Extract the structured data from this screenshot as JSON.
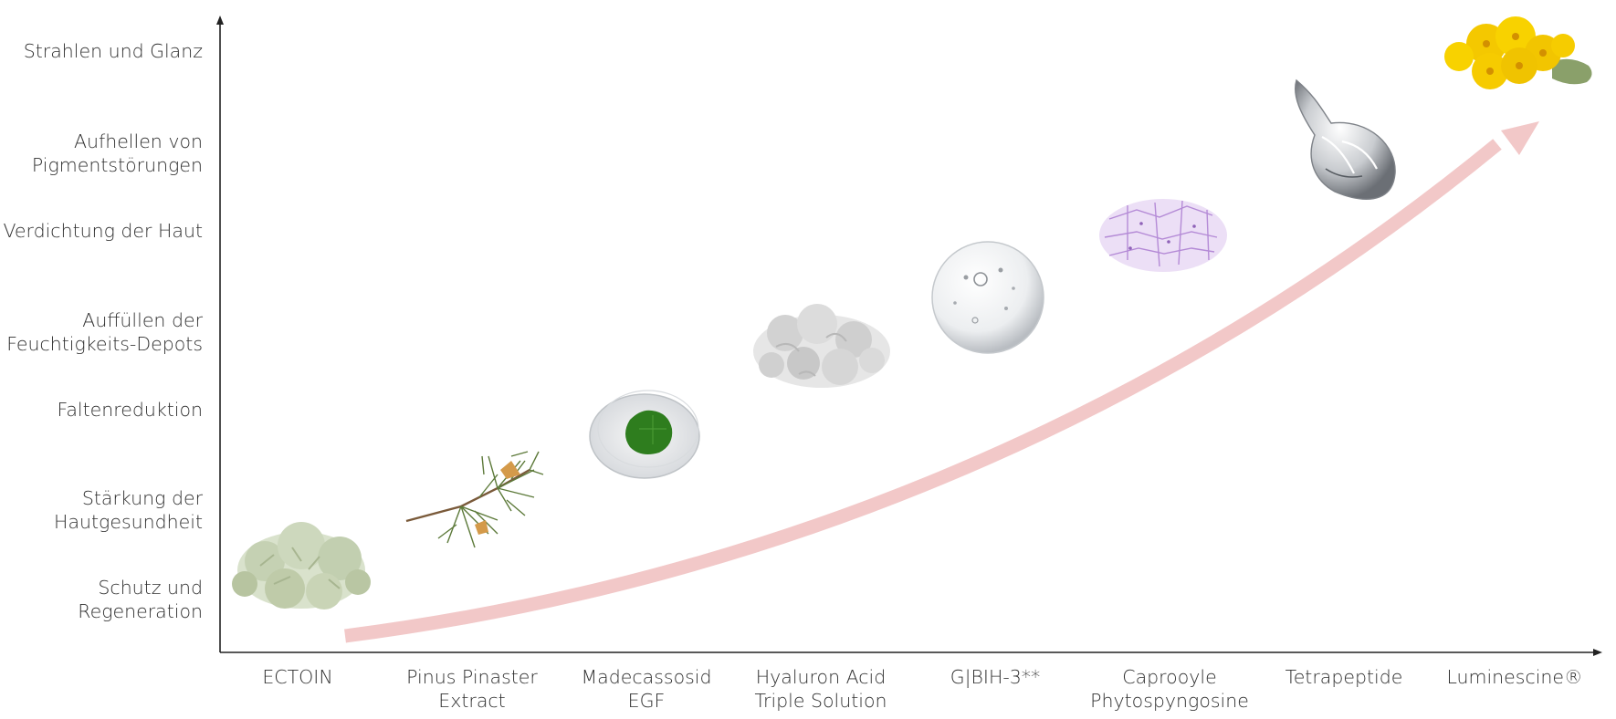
{
  "benefits": [
    {
      "lines": [
        "Strahlen und Glanz"
      ]
    },
    {
      "lines": [
        "Aufhellen von",
        "Pigmentstörungen"
      ]
    },
    {
      "lines": [
        "Verdichtung der Haut"
      ]
    },
    {
      "lines": [
        "Auffüllen der",
        "Feuchtigkeits-Depots"
      ]
    },
    {
      "lines": [
        "Faltenreduktion"
      ]
    },
    {
      "lines": [
        "Stärkung der",
        "Hautgesundheit"
      ]
    },
    {
      "lines": [
        "Schutz und",
        "Regeneration"
      ]
    }
  ],
  "ingredients": [
    {
      "lines": [
        "ECTOIN"
      ],
      "icon": "lichen-icon"
    },
    {
      "lines": [
        "Pinus Pinaster",
        "Extract"
      ],
      "icon": "pine-branch-icon"
    },
    {
      "lines": [
        "Madecassosid",
        "EGF"
      ],
      "icon": "petri-dish-leaf-icon"
    },
    {
      "lines": [
        "Hyaluron Acid",
        "Triple Solution"
      ],
      "icon": "powder-icon"
    },
    {
      "lines": [
        "G|BIH-3**"
      ],
      "icon": "gel-sphere-icon"
    },
    {
      "lines": [
        "Caprooyle",
        "Phytospyngosine"
      ],
      "icon": "cell-structure-icon"
    },
    {
      "lines": [
        "Tetrapeptide"
      ],
      "icon": "water-drop-icon"
    },
    {
      "lines": [
        "Luminescine®"
      ],
      "icon": "yellow-flowers-icon"
    }
  ],
  "colors": {
    "arrow": "#f2c8c8",
    "axis": "#222222",
    "lichen": "#c8d4b8",
    "pine": "#5d7a3a",
    "leaf": "#2e7d1e",
    "cells": "#b48ad6",
    "flower": "#f4c800"
  }
}
